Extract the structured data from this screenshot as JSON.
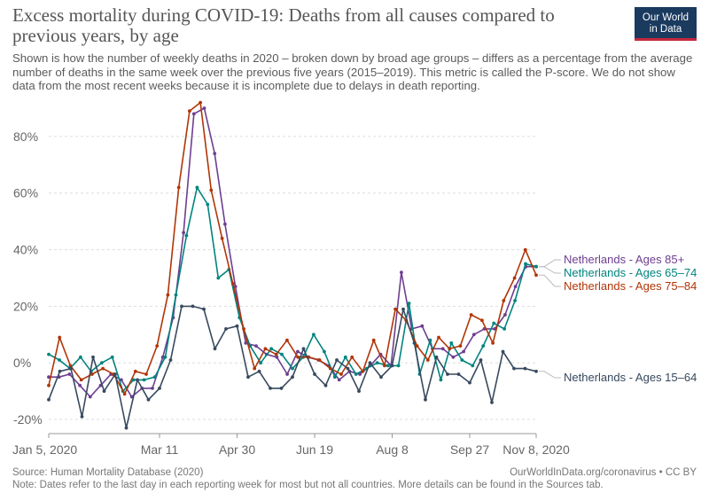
{
  "title": "Excess mortality during COVID-19: Deaths from all causes compared to previous years, by age",
  "subtitle": "Shown is how the number of weekly deaths in 2020 – broken down by broad age groups – differs as a percentage from the average number of deaths in the same week over the previous five years (2015–2019). This metric is called the P-score. We do not show data from the most recent weeks because it is incomplete due to delays in death reporting.",
  "logo": {
    "line1": "Our World",
    "line2": "in Data"
  },
  "footer": {
    "source": "Source: Human Mortality Database (2020)",
    "link": "OurWorldInData.org/coronavirus • CC BY",
    "note": "Note: Dates refer to the last day in each reporting week for most but not all countries. More details can be found in the Sources tab."
  },
  "chart_data": {
    "type": "line",
    "title": "Excess mortality during COVID-19: Deaths from all causes compared to previous years, by age",
    "xlabel": "",
    "ylabel": "",
    "x_unit": "week",
    "xlim": [
      1,
      45
    ],
    "ylim": [
      -25,
      90
    ],
    "yticks": [
      -20,
      0,
      20,
      40,
      60,
      80
    ],
    "ytick_labels": [
      "-20%",
      "0%",
      "20%",
      "40%",
      "60%",
      "80%"
    ],
    "xticks": [
      1,
      11,
      18,
      25,
      32,
      39,
      45
    ],
    "xtick_labels": [
      "Jan 5, 2020",
      "Mar 11",
      "Apr 30",
      "Jun 19",
      "Aug 8",
      "Sep 27",
      "Nov 8, 2020"
    ],
    "grid": "horizontal-dashed",
    "series": [
      {
        "name": "Netherlands - Ages 85+",
        "color": "#6d3e91",
        "values": [
          -5,
          -5,
          -4,
          -8,
          -12,
          -8,
          -4,
          -6,
          -12,
          -9,
          -9,
          2,
          16,
          46,
          88,
          90,
          74,
          49,
          27,
          7,
          6,
          3,
          2,
          -4,
          4,
          2,
          1,
          -1,
          -6,
          -3,
          -4,
          -1,
          3,
          -1,
          32,
          12,
          13,
          5,
          5,
          2,
          4,
          10,
          12,
          12,
          17,
          27,
          34,
          34
        ]
      },
      {
        "name": "Netherlands - Ages 65–74",
        "color": "#00847e",
        "values": [
          3,
          1,
          -2,
          2,
          -3,
          0,
          2,
          -10,
          -6,
          -6,
          -5,
          2,
          24,
          45,
          62,
          56,
          30,
          33,
          16,
          6,
          0,
          5,
          3,
          -2,
          2,
          10,
          4,
          -5,
          2,
          -4,
          -2,
          0,
          -1,
          -1,
          21,
          -4,
          8,
          -6,
          7,
          1,
          -1,
          6,
          14,
          12,
          22,
          35,
          34
        ]
      },
      {
        "name": "Netherlands - Ages 75–84",
        "color": "#b13507",
        "values": [
          -8,
          9,
          -1,
          -6,
          -4,
          -2,
          -4,
          -11,
          -3,
          -4,
          6,
          24,
          62,
          89,
          92,
          61,
          44,
          28,
          12,
          -2,
          5,
          3,
          8,
          2,
          2,
          1,
          -2,
          -4,
          2,
          -3,
          8,
          -1,
          19,
          15,
          6,
          1,
          9,
          5,
          6,
          17,
          15,
          7,
          22,
          30,
          40,
          31
        ]
      },
      {
        "name": "Netherlands - Ages 15–64",
        "color": "#38495e",
        "values": [
          -13,
          -3,
          -2,
          -19,
          2,
          -10,
          -4,
          -23,
          -6,
          -13,
          -9,
          1,
          20,
          20,
          19,
          5,
          12,
          13,
          -5,
          -3,
          -9,
          -9,
          -5,
          5,
          -4,
          -8,
          1,
          -2,
          -10,
          0,
          -5,
          -1,
          19,
          7,
          -13,
          2,
          -4,
          -4,
          -7,
          1,
          -14,
          4,
          -2,
          -2,
          -3
        ]
      }
    ]
  }
}
